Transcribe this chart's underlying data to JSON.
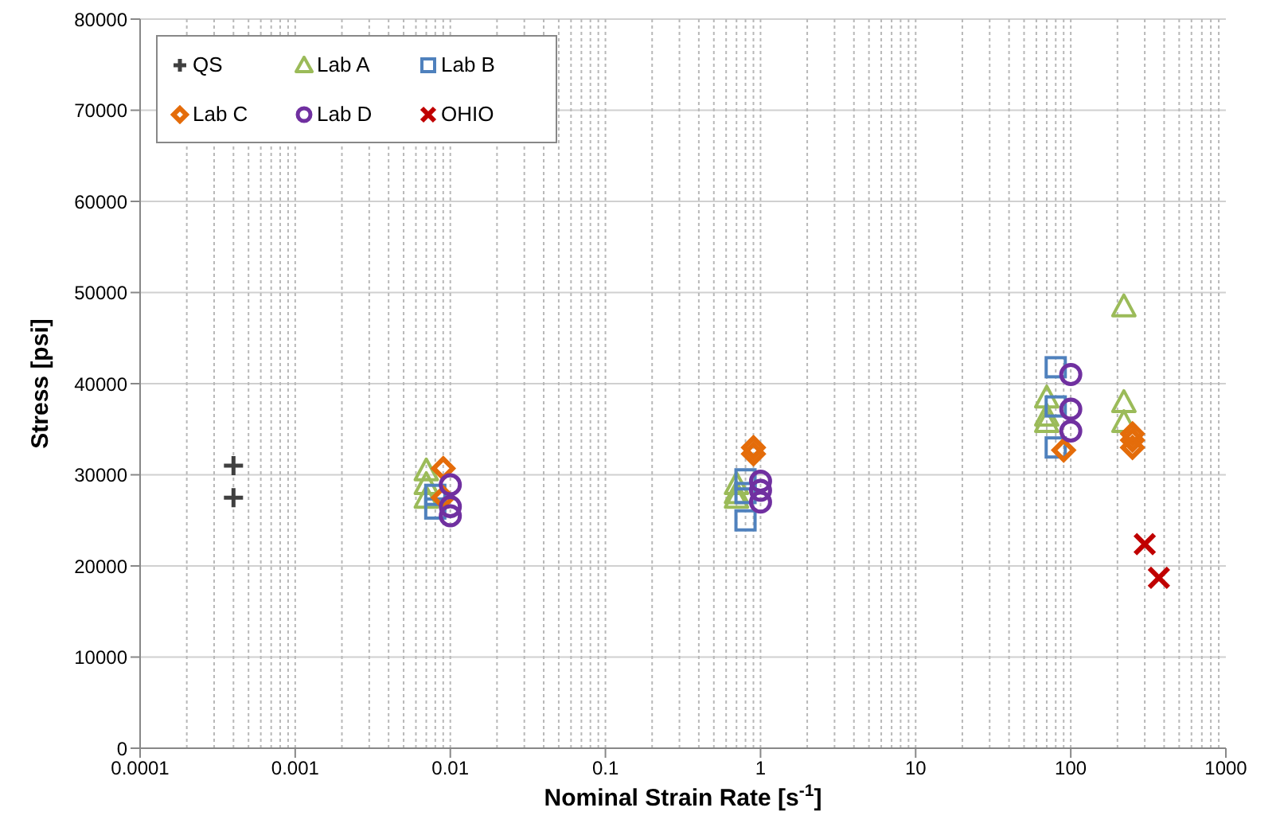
{
  "chart_data": {
    "type": "scatter",
    "xlabel": "Nominal Strain Rate [s$^{-1}$]",
    "ylabel": "Stress [psi]",
    "log": "x",
    "xlim": [
      0.0001,
      1000
    ],
    "xticks": [
      0.0001,
      0.001,
      0.01,
      0.1,
      1,
      10,
      100,
      1000
    ],
    "ylim": [
      0,
      80000
    ],
    "yticks": [
      0,
      10000,
      20000,
      30000,
      40000,
      50000,
      60000,
      70000,
      80000
    ],
    "grid": true,
    "legend": "top left",
    "series": [
      {
        "name": "QS",
        "color": "#404040",
        "marker": "plus",
        "x": [
          0.0004,
          0.0004
        ],
        "values": [
          31000,
          27500
        ]
      },
      {
        "name": "Lab A",
        "color": "#9bbb59",
        "marker": "triangle",
        "x": [
          0.007,
          0.007,
          0.007,
          0.7,
          0.7,
          0.7,
          70,
          70,
          70,
          220,
          220,
          220
        ],
        "values": [
          30500,
          29000,
          27500,
          29000,
          28000,
          27500,
          38500,
          36500,
          35800,
          48500,
          38000,
          35800
        ]
      },
      {
        "name": "Lab B",
        "color": "#4f81bd",
        "marker": "square",
        "x": [
          0.008,
          0.008,
          0.8,
          0.8,
          0.8,
          80,
          80,
          80
        ],
        "values": [
          27800,
          26300,
          29500,
          28000,
          25000,
          41800,
          37500,
          33000
        ]
      },
      {
        "name": "Lab C",
        "color": "#e46c0a",
        "marker": "diamond",
        "x": [
          0.009,
          0.009,
          0.9,
          0.9,
          90,
          250,
          250,
          250
        ],
        "values": [
          30700,
          27500,
          33000,
          32300,
          32700,
          34500,
          33800,
          33000
        ]
      },
      {
        "name": "Lab D",
        "color": "#7030a0",
        "marker": "circle",
        "x": [
          0.01,
          0.01,
          0.01,
          1,
          1,
          1,
          100,
          100,
          100
        ],
        "values": [
          28900,
          26500,
          25500,
          29300,
          28300,
          27000,
          41000,
          37200,
          34800
        ]
      },
      {
        "name": "OHIO",
        "color": "#c00000",
        "marker": "cross",
        "x": [
          300,
          370
        ],
        "values": [
          22400,
          18700
        ]
      }
    ]
  }
}
